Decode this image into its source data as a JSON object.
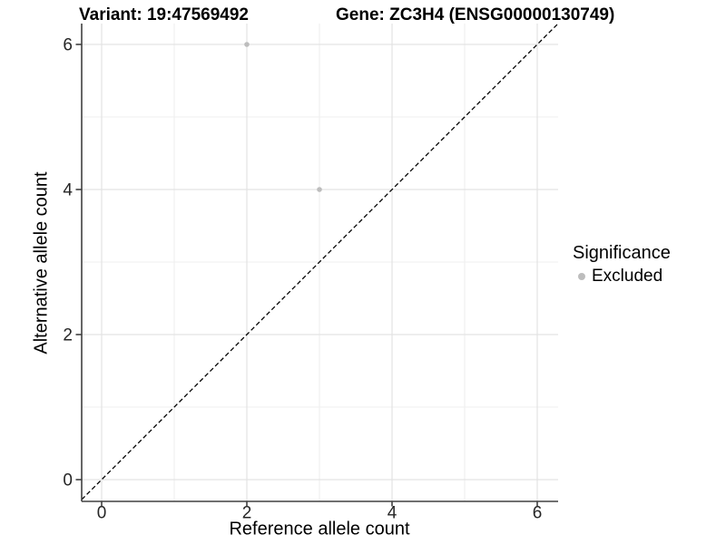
{
  "chart_data": {
    "type": "scatter",
    "title_variant": "Variant: 19:47569492",
    "title_gene": "Gene: ZC3H4 (ENSG00000130749)",
    "xlabel": "Reference allele count",
    "ylabel": "Alternative allele count",
    "x_ticks": [
      0,
      2,
      4,
      6
    ],
    "y_ticks": [
      0,
      2,
      4,
      6
    ],
    "x_minor": [
      1,
      3,
      5
    ],
    "y_minor": [
      1,
      3,
      5
    ],
    "xlim": [
      -0.275,
      6.2875
    ],
    "ylim": [
      -0.3,
      6.2875
    ],
    "grid": true,
    "series": [
      {
        "name": "Excluded",
        "color": "#bdbdbd",
        "points": [
          {
            "x": 2,
            "y": 6
          },
          {
            "x": 3,
            "y": 4
          }
        ]
      }
    ],
    "identity_line": {
      "slope": 1,
      "intercept": 0,
      "style": "dashed",
      "color": "#000000"
    },
    "legend": {
      "title": "Significance",
      "position": "right",
      "items": [
        {
          "label": "Excluded",
          "color": "#bdbdbd"
        }
      ]
    },
    "colors": {
      "grid_major": "#e3e3e3",
      "grid_minor": "#efefef",
      "axis_line": "#404040",
      "tick_label": "#262626",
      "background": "#ffffff"
    }
  }
}
